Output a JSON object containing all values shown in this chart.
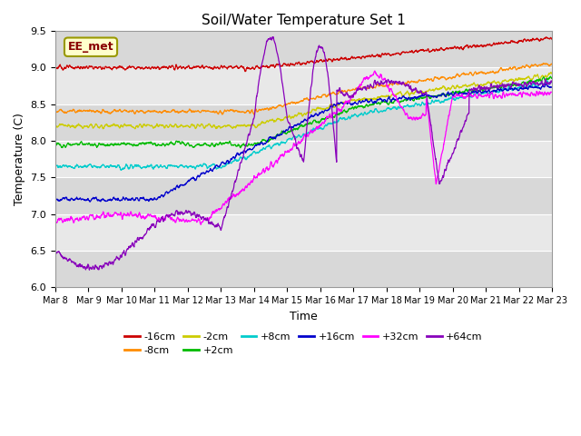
{
  "title": "Soil/Water Temperature Set 1",
  "xlabel": "Time",
  "ylabel": "Temperature (C)",
  "ylim": [
    6.0,
    9.5
  ],
  "annotation": "EE_met",
  "background_color": "#ffffff",
  "plot_bg_color": "#e8e8e8",
  "band_colors": [
    "#d8d8d8",
    "#e8e8e8"
  ],
  "grid_color": "#ffffff",
  "series": [
    {
      "label": "-16cm",
      "color": "#cc0000"
    },
    {
      "label": "-8cm",
      "color": "#ff8c00"
    },
    {
      "label": "-2cm",
      "color": "#cccc00"
    },
    {
      "label": "+2cm",
      "color": "#00bb00"
    },
    {
      "label": "+8cm",
      "color": "#00cccc"
    },
    {
      "label": "+16cm",
      "color": "#0000cc"
    },
    {
      "label": "+32cm",
      "color": "#ff00ff"
    },
    {
      "label": "+64cm",
      "color": "#8800bb"
    }
  ],
  "yticks": [
    6.0,
    6.5,
    7.0,
    7.5,
    8.0,
    8.5,
    9.0,
    9.5
  ]
}
